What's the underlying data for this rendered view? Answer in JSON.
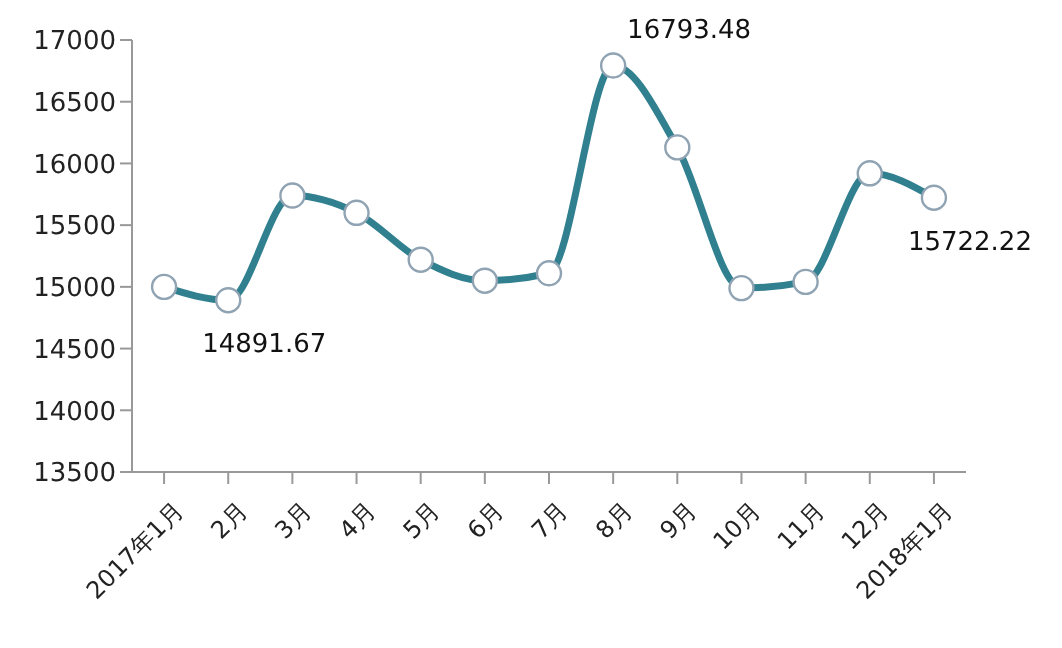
{
  "chart_data": {
    "type": "line",
    "categories": [
      "2017年1月",
      "2月",
      "3月",
      "4月",
      "5月",
      "6月",
      "7月",
      "8月",
      "9月",
      "10月",
      "11月",
      "12月",
      "2018年1月"
    ],
    "series": [
      {
        "color": "#31808f",
        "values": [
          15000,
          14891.67,
          15740,
          15600,
          15220,
          15050,
          15110,
          16793.48,
          16130,
          14990,
          15040,
          15920,
          15722.22
        ],
        "value_labels": [
          null,
          "14891.67",
          null,
          null,
          null,
          null,
          null,
          "16793.48",
          null,
          null,
          null,
          null,
          "15722.22"
        ]
      }
    ],
    "ylim": [
      13500,
      17000
    ],
    "yticks": [
      13500,
      14000,
      14500,
      15000,
      15500,
      16000,
      16500,
      17000
    ],
    "marker": "circle",
    "line_style": "solid"
  }
}
